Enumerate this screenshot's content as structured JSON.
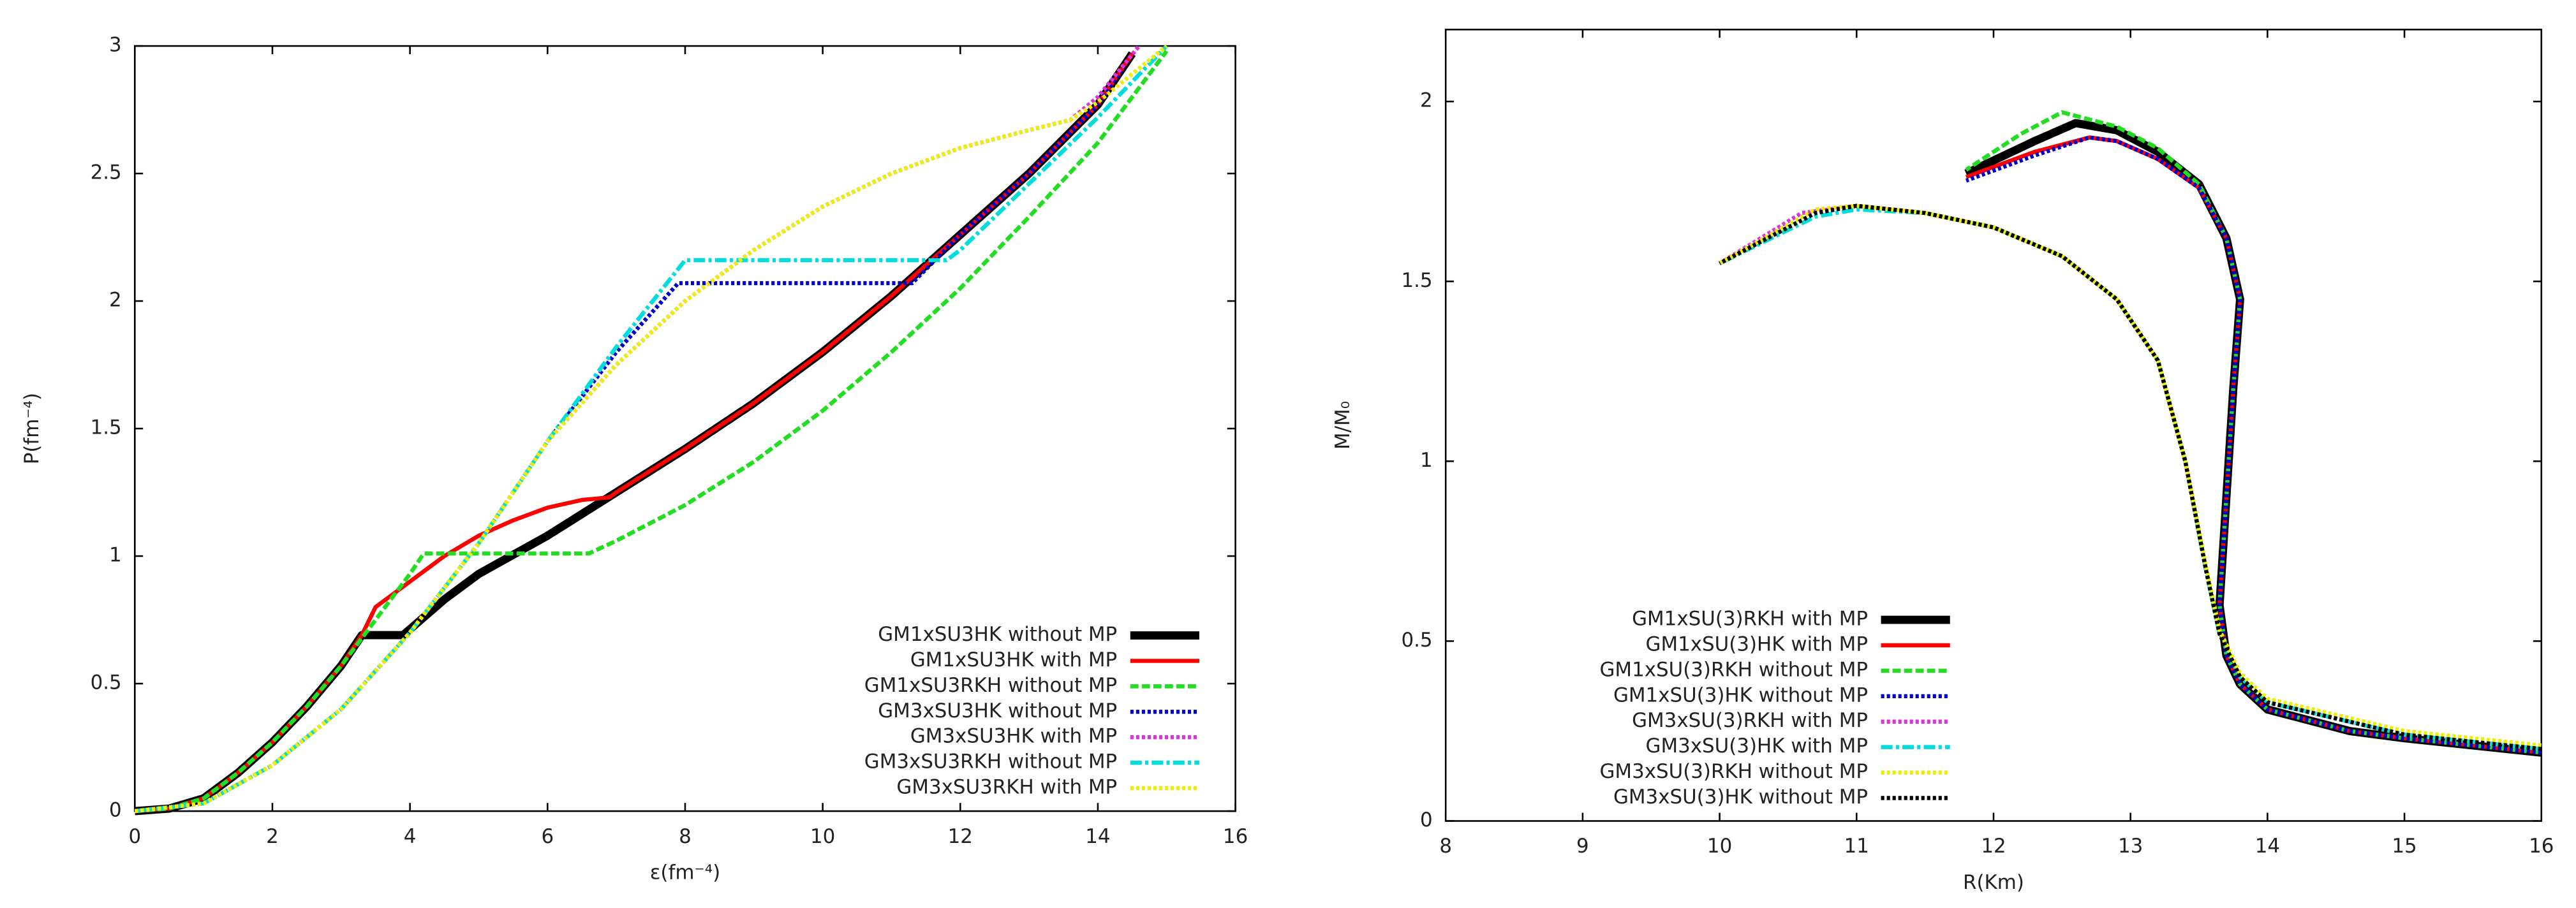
{
  "chart_data": [
    {
      "type": "line",
      "xlabel": "ε(fm⁻⁴)",
      "ylabel": "P(fm⁻⁴)",
      "xlim": [
        0,
        16
      ],
      "ylim": [
        0,
        3
      ],
      "xticks": [
        0,
        2,
        4,
        6,
        8,
        10,
        12,
        14,
        16
      ],
      "yticks": [
        0,
        0.5,
        1,
        1.5,
        2,
        2.5,
        3
      ],
      "grid": false,
      "legend": "lower right",
      "series": [
        {
          "name": "GM1xSU3HK without MP",
          "color": "#000000",
          "style": "thick",
          "x": [
            0,
            0.5,
            1,
            1.5,
            2,
            2.5,
            3,
            3.3,
            3.9,
            4.5,
            5,
            6,
            7,
            8,
            9,
            10,
            11,
            12,
            13,
            14,
            14.5
          ],
          "values": [
            0,
            0.01,
            0.05,
            0.15,
            0.27,
            0.41,
            0.57,
            0.69,
            0.69,
            0.83,
            0.93,
            1.08,
            1.25,
            1.42,
            1.6,
            1.8,
            2.02,
            2.26,
            2.5,
            2.77,
            2.97
          ]
        },
        {
          "name": "GM1xSU3HK with MP",
          "color": "#ff0000",
          "style": "solid",
          "x": [
            0,
            0.5,
            1,
            1.5,
            2,
            2.5,
            3,
            3.3,
            3.5,
            4,
            4.5,
            5,
            5.5,
            6,
            6.5,
            6.9,
            7,
            8,
            9,
            10,
            11,
            12,
            13,
            14,
            14.5
          ],
          "values": [
            0,
            0.01,
            0.05,
            0.15,
            0.27,
            0.41,
            0.57,
            0.69,
            0.8,
            0.9,
            1.0,
            1.08,
            1.14,
            1.19,
            1.22,
            1.23,
            1.25,
            1.42,
            1.6,
            1.8,
            2.02,
            2.26,
            2.5,
            2.77,
            2.97
          ]
        },
        {
          "name": "GM1xSU3RKH without MP",
          "color": "#22dd22",
          "style": "dashed",
          "x": [
            0,
            0.5,
            1,
            1.5,
            2,
            2.5,
            3,
            3.5,
            4,
            4.2,
            6.6,
            7,
            8,
            9,
            10,
            11,
            12,
            13,
            14,
            15
          ],
          "values": [
            0,
            0.01,
            0.05,
            0.15,
            0.27,
            0.41,
            0.57,
            0.75,
            0.93,
            1.01,
            1.01,
            1.06,
            1.2,
            1.37,
            1.57,
            1.8,
            2.05,
            2.33,
            2.62,
            2.98
          ]
        },
        {
          "name": "GM3xSU3HK without MP",
          "color": "#0000cc",
          "style": "dotted",
          "x": [
            0,
            1,
            2,
            3,
            4,
            5,
            6,
            7,
            7.9,
            11.3,
            12,
            13,
            14,
            14.5
          ],
          "values": [
            0,
            0.03,
            0.18,
            0.4,
            0.7,
            1.05,
            1.45,
            1.8,
            2.07,
            2.07,
            2.26,
            2.5,
            2.77,
            2.97
          ]
        },
        {
          "name": "GM3xSU3HK with MP",
          "color": "#dd33dd",
          "style": "dotted",
          "x": [
            0,
            1,
            2,
            3,
            4,
            5,
            6,
            7,
            8,
            9,
            10,
            11,
            12,
            13,
            13.6,
            14,
            14.6
          ],
          "values": [
            0,
            0.03,
            0.18,
            0.4,
            0.7,
            1.05,
            1.45,
            1.75,
            2.0,
            2.2,
            2.37,
            2.5,
            2.6,
            2.67,
            2.71,
            2.8,
            3.0
          ]
        },
        {
          "name": "GM3xSU3RKH without MP",
          "color": "#00dddd",
          "style": "dash-dot",
          "x": [
            0,
            1,
            2,
            3,
            4,
            5,
            6,
            7,
            8,
            11.8,
            12,
            13,
            14,
            15
          ],
          "values": [
            0,
            0.03,
            0.18,
            0.4,
            0.7,
            1.05,
            1.45,
            1.82,
            2.16,
            2.16,
            2.2,
            2.46,
            2.72,
            3.0
          ]
        },
        {
          "name": "GM3xSU3RKH with MP",
          "color": "#eeee00",
          "style": "dotted",
          "x": [
            0,
            1,
            2,
            3,
            4,
            5,
            6,
            7,
            8,
            9,
            10,
            11,
            12,
            13,
            13.6,
            14,
            15
          ],
          "values": [
            0,
            0.03,
            0.18,
            0.4,
            0.7,
            1.05,
            1.45,
            1.75,
            2.0,
            2.2,
            2.37,
            2.5,
            2.6,
            2.67,
            2.71,
            2.78,
            3.0
          ]
        }
      ]
    },
    {
      "type": "line",
      "xlabel": "R(Km)",
      "ylabel": "M/M₀",
      "xlim": [
        8,
        16
      ],
      "ylim": [
        0,
        2.2
      ],
      "xticks": [
        8,
        9,
        10,
        11,
        12,
        13,
        14,
        15,
        16
      ],
      "yticks": [
        0,
        0.5,
        1,
        1.5,
        2
      ],
      "grid": false,
      "legend": "lower left",
      "series": [
        {
          "name": "GM1xSU(3)RKH with MP",
          "color": "#000000",
          "style": "thick",
          "x": [
            16,
            15,
            14.6,
            14,
            13.8,
            13.7,
            13.65,
            13.7,
            13.75,
            13.8,
            13.7,
            13.5,
            13.2,
            12.9,
            12.6,
            12.3,
            11.8
          ],
          "values": [
            0.19,
            0.23,
            0.25,
            0.31,
            0.38,
            0.46,
            0.6,
            0.9,
            1.2,
            1.45,
            1.62,
            1.77,
            1.86,
            1.92,
            1.94,
            1.89,
            1.8
          ]
        },
        {
          "name": "GM1xSU(3)HK with MP",
          "color": "#ff0000",
          "style": "solid",
          "x": [
            16,
            15,
            14.6,
            14,
            13.8,
            13.7,
            13.65,
            13.7,
            13.75,
            13.8,
            13.7,
            13.5,
            13.2,
            12.9,
            12.7,
            12.3,
            11.8
          ],
          "values": [
            0.19,
            0.23,
            0.25,
            0.31,
            0.38,
            0.46,
            0.6,
            0.9,
            1.2,
            1.45,
            1.62,
            1.76,
            1.84,
            1.89,
            1.9,
            1.86,
            1.79
          ]
        },
        {
          "name": "GM1xSU(3)RKH without MP",
          "color": "#22dd22",
          "style": "dashed",
          "x": [
            16,
            15,
            14.6,
            14,
            13.8,
            13.7,
            13.65,
            13.7,
            13.75,
            13.8,
            13.7,
            13.5,
            13.2,
            12.9,
            12.5,
            12.2,
            11.8
          ],
          "values": [
            0.19,
            0.23,
            0.25,
            0.31,
            0.38,
            0.46,
            0.6,
            0.9,
            1.2,
            1.45,
            1.62,
            1.77,
            1.87,
            1.93,
            1.97,
            1.91,
            1.81
          ]
        },
        {
          "name": "GM1xSU(3)HK without MP",
          "color": "#0000cc",
          "style": "dotted",
          "x": [
            16,
            15,
            14.6,
            14,
            13.8,
            13.7,
            13.65,
            13.7,
            13.75,
            13.8,
            13.7,
            13.5,
            13.2,
            12.9,
            12.7,
            12.3,
            11.8
          ],
          "values": [
            0.19,
            0.23,
            0.25,
            0.31,
            0.38,
            0.46,
            0.6,
            0.9,
            1.2,
            1.45,
            1.62,
            1.76,
            1.84,
            1.89,
            1.9,
            1.85,
            1.78
          ]
        },
        {
          "name": "GM3xSU(3)RKH with MP",
          "color": "#dd33dd",
          "style": "dotted",
          "x": [
            16,
            15,
            14,
            13.8,
            13.65,
            13.55,
            13.4,
            13.2,
            12.9,
            12.5,
            12,
            11.5,
            11,
            10.6,
            10
          ],
          "values": [
            0.2,
            0.24,
            0.33,
            0.4,
            0.52,
            0.7,
            1.0,
            1.28,
            1.45,
            1.57,
            1.65,
            1.69,
            1.71,
            1.69,
            1.55
          ]
        },
        {
          "name": "GM3xSU(3)HK with MP",
          "color": "#00dddd",
          "style": "dash-dot",
          "x": [
            16,
            15,
            14,
            13.8,
            13.65,
            13.55,
            13.4,
            13.2,
            12.9,
            12.5,
            12,
            11.5,
            11,
            10.7,
            10
          ],
          "values": [
            0.2,
            0.24,
            0.33,
            0.4,
            0.52,
            0.7,
            1.0,
            1.28,
            1.45,
            1.57,
            1.65,
            1.69,
            1.7,
            1.68,
            1.55
          ]
        },
        {
          "name": "GM3xSU(3)RKH without MP",
          "color": "#eeee00",
          "style": "dotted",
          "x": [
            16,
            15,
            14,
            13.8,
            13.65,
            13.55,
            13.4,
            13.2,
            12.9,
            12.5,
            12,
            11.5,
            11,
            10.7,
            10
          ],
          "values": [
            0.21,
            0.25,
            0.34,
            0.41,
            0.53,
            0.71,
            1.0,
            1.28,
            1.45,
            1.57,
            1.65,
            1.69,
            1.71,
            1.7,
            1.55
          ]
        },
        {
          "name": "GM3xSU(3)HK without MP",
          "color": "#000000",
          "style": "dotted",
          "x": [
            16,
            15,
            14,
            13.8,
            13.65,
            13.55,
            13.4,
            13.2,
            12.9,
            12.5,
            12,
            11.5,
            11,
            10.7,
            10
          ],
          "values": [
            0.2,
            0.24,
            0.33,
            0.4,
            0.52,
            0.7,
            1.0,
            1.28,
            1.45,
            1.57,
            1.65,
            1.69,
            1.71,
            1.69,
            1.55
          ]
        }
      ]
    }
  ]
}
